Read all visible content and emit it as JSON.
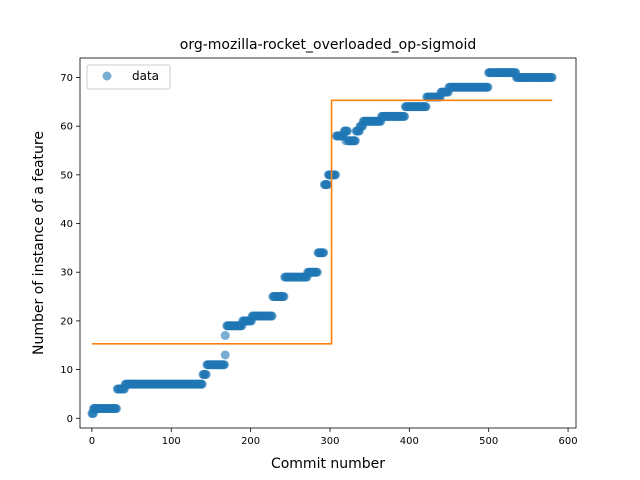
{
  "chart_data": {
    "type": "scatter",
    "title": "org-mozilla-rocket_overloaded_op-sigmoid",
    "xlabel": "Commit number",
    "ylabel": "Number of instance of a feature",
    "xlim": [
      -15,
      610
    ],
    "ylim": [
      -2,
      74
    ],
    "xticks": [
      0,
      100,
      200,
      300,
      400,
      500,
      600
    ],
    "yticks": [
      0,
      10,
      20,
      30,
      40,
      50,
      60,
      70
    ],
    "grid": false,
    "legend": {
      "placement": "upper-left",
      "entries": [
        "data"
      ]
    },
    "colors": {
      "data": "#1f77b4",
      "fit": "#ff7f0e"
    },
    "series": [
      {
        "name": "data",
        "kind": "scatter",
        "steps": [
          [
            0,
            3,
            1
          ],
          [
            2,
            32,
            2
          ],
          [
            32,
            42,
            6
          ],
          [
            42,
            140,
            7
          ],
          [
            140,
            145,
            9
          ],
          [
            145,
            168,
            11
          ],
          [
            170,
            190,
            19
          ],
          [
            190,
            202,
            20
          ],
          [
            202,
            228,
            21
          ],
          [
            228,
            243,
            25
          ],
          [
            243,
            272,
            29
          ],
          [
            272,
            285,
            30
          ],
          [
            285,
            293,
            34
          ],
          [
            293,
            298,
            48
          ],
          [
            298,
            308,
            50
          ],
          [
            308,
            318,
            58
          ],
          [
            318,
            323,
            59
          ],
          [
            323,
            333,
            57
          ],
          [
            333,
            338,
            59
          ],
          [
            338,
            342,
            60
          ],
          [
            342,
            365,
            61
          ],
          [
            365,
            395,
            62
          ],
          [
            395,
            422,
            64
          ],
          [
            422,
            440,
            66
          ],
          [
            440,
            450,
            67
          ],
          [
            450,
            500,
            68
          ],
          [
            500,
            535,
            71
          ],
          [
            535,
            580,
            70
          ]
        ],
        "extra_points": [
          [
            168,
            13
          ],
          [
            168,
            17
          ],
          [
            296,
            48
          ],
          [
            300,
            50
          ],
          [
            320,
            57
          ]
        ]
      },
      {
        "name": "",
        "kind": "line",
        "x": [
          0,
          302,
          302,
          580
        ],
        "y": [
          15.3,
          15.3,
          65.3,
          65.3
        ]
      }
    ]
  }
}
